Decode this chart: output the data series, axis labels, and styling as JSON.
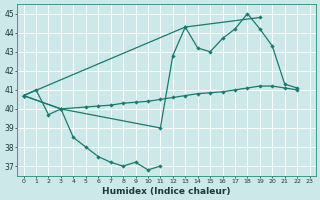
{
  "xlabel": "Humidex (Indice chaleur)",
  "bg_color": "#cce8e8",
  "grid_color": "#ffffff",
  "line_color": "#1a7a6e",
  "xlim": [
    -0.5,
    23.5
  ],
  "ylim": [
    36.5,
    45.5
  ],
  "yticks": [
    37,
    38,
    39,
    40,
    41,
    42,
    43,
    44,
    45
  ],
  "xticks": [
    0,
    1,
    2,
    3,
    4,
    5,
    6,
    7,
    8,
    9,
    10,
    11,
    12,
    13,
    14,
    15,
    16,
    17,
    18,
    19,
    20,
    21,
    22,
    23
  ],
  "series1": {
    "x": [
      0,
      1,
      2,
      3,
      4,
      5,
      6,
      7,
      8,
      9,
      10,
      11
    ],
    "y": [
      40.7,
      41.0,
      39.7,
      40.0,
      38.5,
      38.0,
      37.5,
      37.2,
      37.0,
      37.2,
      36.8,
      37.0
    ]
  },
  "series2": {
    "x": [
      0,
      3,
      11,
      12,
      13,
      14,
      15,
      16,
      17,
      18,
      19,
      20,
      21,
      22
    ],
    "y": [
      40.7,
      40.0,
      39.0,
      42.8,
      44.3,
      43.2,
      43.0,
      43.7,
      44.2,
      45.0,
      44.2,
      43.3,
      41.3,
      41.1
    ]
  },
  "series3": {
    "x": [
      0,
      13,
      19
    ],
    "y": [
      40.7,
      44.3,
      44.8
    ]
  },
  "series4": {
    "x": [
      0,
      3,
      5,
      6,
      7,
      8,
      9,
      10,
      11,
      12,
      13,
      14,
      15,
      16,
      17,
      18,
      19,
      20,
      21,
      22
    ],
    "y": [
      40.7,
      40.0,
      40.1,
      40.15,
      40.2,
      40.3,
      40.35,
      40.4,
      40.5,
      40.6,
      40.7,
      40.8,
      40.85,
      40.9,
      41.0,
      41.1,
      41.2,
      41.2,
      41.1,
      41.0
    ]
  }
}
